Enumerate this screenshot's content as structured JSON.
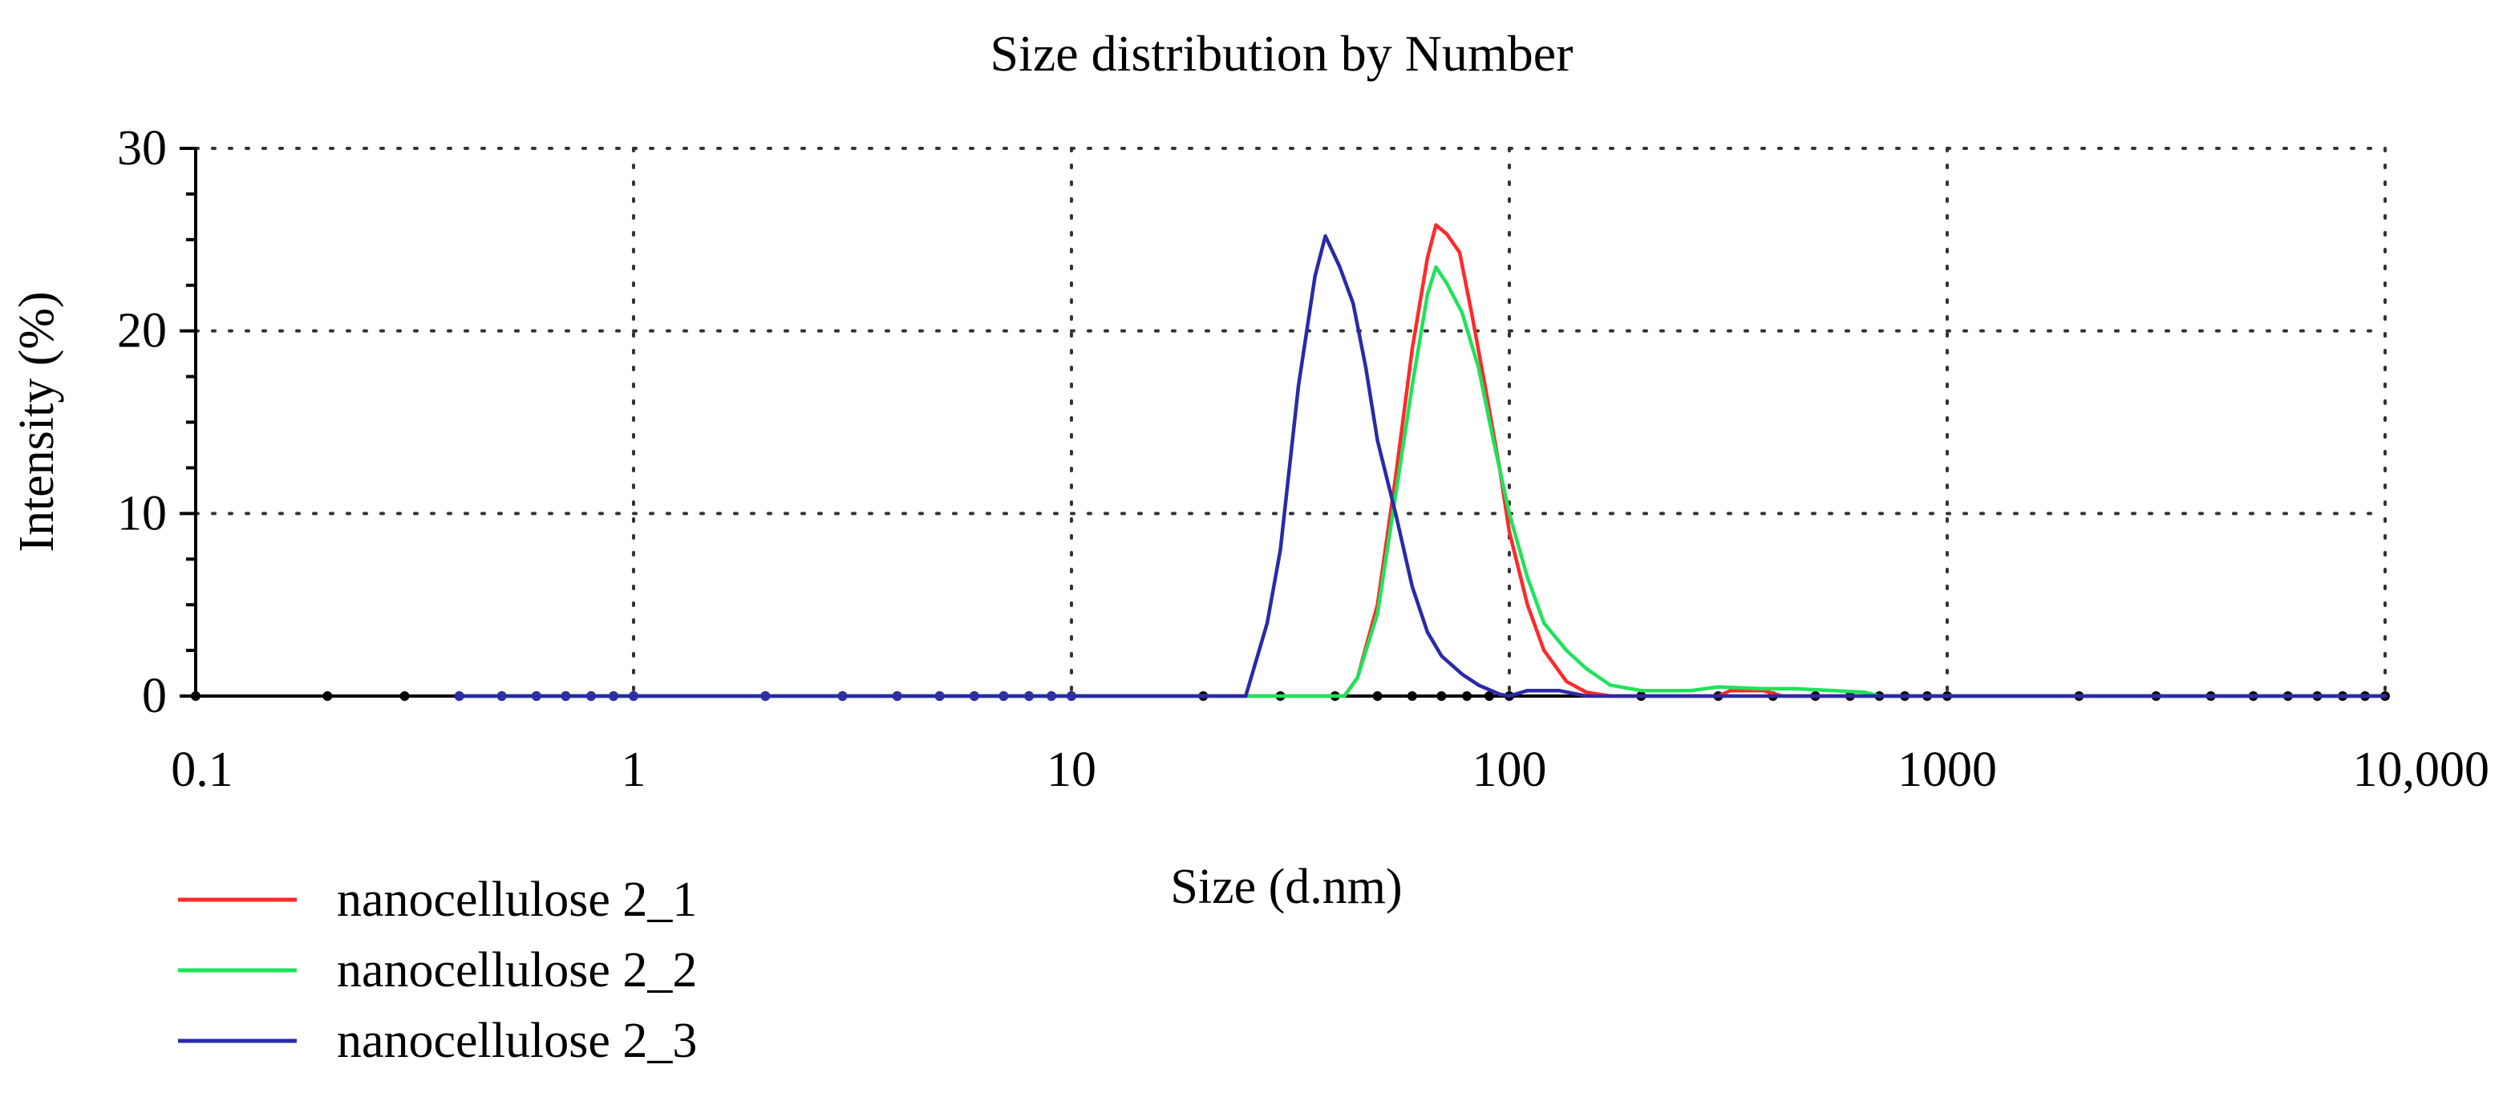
{
  "chart_data": {
    "type": "line",
    "title": "Size distribution by Number",
    "xlabel": "Size (d.nm)",
    "ylabel": "Intensity (%)",
    "xscale": "log",
    "xlim": [
      0.1,
      10000
    ],
    "ylim": [
      0,
      30
    ],
    "x_ticks": [
      {
        "value": 0.1,
        "label": "0.1"
      },
      {
        "value": 1,
        "label": "1"
      },
      {
        "value": 10,
        "label": "10"
      },
      {
        "value": 100,
        "label": "100"
      },
      {
        "value": 1000,
        "label": "1000"
      },
      {
        "value": 10000,
        "label": "10,000"
      }
    ],
    "y_ticks": [
      {
        "value": 0,
        "label": "0"
      },
      {
        "value": 10,
        "label": "10"
      },
      {
        "value": 20,
        "label": "20"
      },
      {
        "value": 30,
        "label": "30"
      }
    ],
    "grid": true,
    "legend_position": "bottom-left",
    "series": [
      {
        "name": "nanocellulose 2_1",
        "color": "#ff2a2a",
        "points": [
          [
            0.4,
            0
          ],
          [
            35,
            0
          ],
          [
            42,
            0
          ],
          [
            45,
            1
          ],
          [
            50,
            5
          ],
          [
            55,
            12
          ],
          [
            60,
            19
          ],
          [
            65,
            24
          ],
          [
            68,
            25.8
          ],
          [
            72,
            25.3
          ],
          [
            77,
            24.3
          ],
          [
            82,
            21
          ],
          [
            88,
            17
          ],
          [
            95,
            12.5
          ],
          [
            100,
            9
          ],
          [
            110,
            5
          ],
          [
            120,
            2.5
          ],
          [
            135,
            0.8
          ],
          [
            150,
            0.2
          ],
          [
            170,
            0
          ],
          [
            300,
            0
          ],
          [
            320,
            0.3
          ],
          [
            380,
            0.3
          ],
          [
            420,
            0
          ],
          [
            10000,
            0
          ]
        ]
      },
      {
        "name": "nanocellulose 2_2",
        "color": "#1ee35a",
        "points": [
          [
            0.4,
            0
          ],
          [
            35,
            0
          ],
          [
            42,
            0
          ],
          [
            45,
            1
          ],
          [
            50,
            4.5
          ],
          [
            55,
            11
          ],
          [
            60,
            17
          ],
          [
            65,
            22
          ],
          [
            68,
            23.5
          ],
          [
            72,
            22.6
          ],
          [
            78,
            21
          ],
          [
            85,
            18
          ],
          [
            92,
            14
          ],
          [
            100,
            10
          ],
          [
            110,
            6.5
          ],
          [
            120,
            4
          ],
          [
            135,
            2.5
          ],
          [
            150,
            1.5
          ],
          [
            170,
            0.6
          ],
          [
            200,
            0.3
          ],
          [
            260,
            0.3
          ],
          [
            300,
            0.5
          ],
          [
            380,
            0.4
          ],
          [
            450,
            0.4
          ],
          [
            550,
            0.3
          ],
          [
            650,
            0.2
          ],
          [
            700,
            0
          ],
          [
            10000,
            0
          ]
        ]
      },
      {
        "name": "nanocellulose 2_3",
        "color": "#2a2aa8",
        "points": [
          [
            0.4,
            0
          ],
          [
            22,
            0
          ],
          [
            25,
            0
          ],
          [
            28,
            4
          ],
          [
            30,
            8
          ],
          [
            33,
            17
          ],
          [
            36,
            23
          ],
          [
            38,
            25.2
          ],
          [
            41,
            23.5
          ],
          [
            44,
            21.5
          ],
          [
            47,
            18
          ],
          [
            50,
            14
          ],
          [
            55,
            10
          ],
          [
            60,
            6
          ],
          [
            65,
            3.5
          ],
          [
            70,
            2.2
          ],
          [
            78,
            1.2
          ],
          [
            85,
            0.6
          ],
          [
            95,
            0.1
          ],
          [
            100,
            0
          ],
          [
            110,
            0.3
          ],
          [
            130,
            0.3
          ],
          [
            150,
            0
          ],
          [
            10000,
            0
          ]
        ]
      }
    ],
    "black_markers_x": [
      0.1,
      0.2,
      0.3,
      0.4,
      0.5,
      0.6,
      0.7,
      0.8,
      0.9,
      1,
      2,
      3,
      4,
      5,
      6,
      7,
      8,
      9,
      10,
      20,
      30,
      40,
      50,
      60,
      70,
      80,
      90,
      100,
      200,
      300,
      400,
      500,
      600,
      700,
      800,
      900,
      1000,
      2000,
      3000,
      4000,
      5000,
      6000,
      7000,
      8000,
      9000,
      10000
    ],
    "blue_markers_x": [
      0.4,
      0.5,
      0.6,
      0.7,
      0.8,
      0.9,
      1,
      2,
      3,
      4,
      5,
      6,
      7,
      8,
      9,
      10
    ]
  }
}
